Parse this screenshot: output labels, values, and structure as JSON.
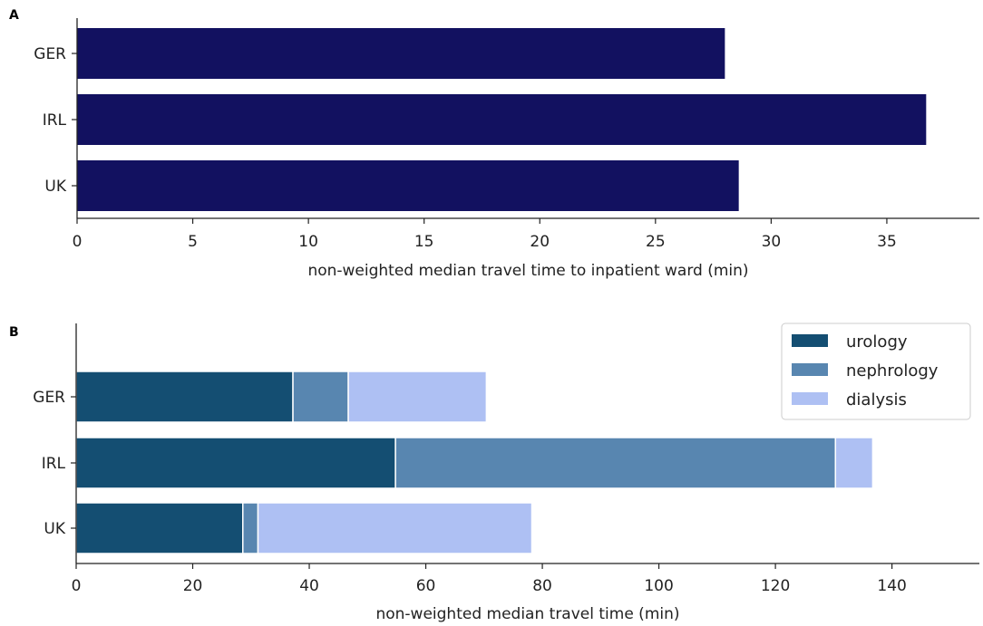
{
  "chart_data": [
    {
      "panel_label": "A",
      "type": "bar",
      "orientation": "horizontal",
      "categories": [
        "GER",
        "IRL",
        "UK"
      ],
      "values": [
        28.0,
        36.7,
        28.6
      ],
      "xlabel": "non-weighted median travel time to inpatient ward (min)",
      "xlim": [
        0,
        39
      ],
      "xticks": [
        0,
        5,
        10,
        15,
        20,
        25,
        30,
        35
      ],
      "color": "#121160",
      "grid": false
    },
    {
      "panel_label": "B",
      "type": "bar",
      "orientation": "horizontal",
      "stacked": true,
      "categories": [
        "GER",
        "IRL",
        "UK"
      ],
      "series": [
        {
          "name": "urology",
          "values": [
            37.2,
            54.8,
            28.6
          ],
          "color": "#144e72"
        },
        {
          "name": "nephrology",
          "values": [
            9.5,
            75.5,
            2.6
          ],
          "color": "#5886b0"
        },
        {
          "name": "dialysis",
          "values": [
            23.7,
            6.4,
            47.0
          ],
          "color": "#aec0f3"
        }
      ],
      "xlabel": "non-weighted median travel time (min)",
      "xlim": [
        0,
        155
      ],
      "xticks": [
        0,
        20,
        40,
        60,
        80,
        100,
        120,
        140
      ],
      "legend_position": "top-right",
      "grid": false
    }
  ]
}
